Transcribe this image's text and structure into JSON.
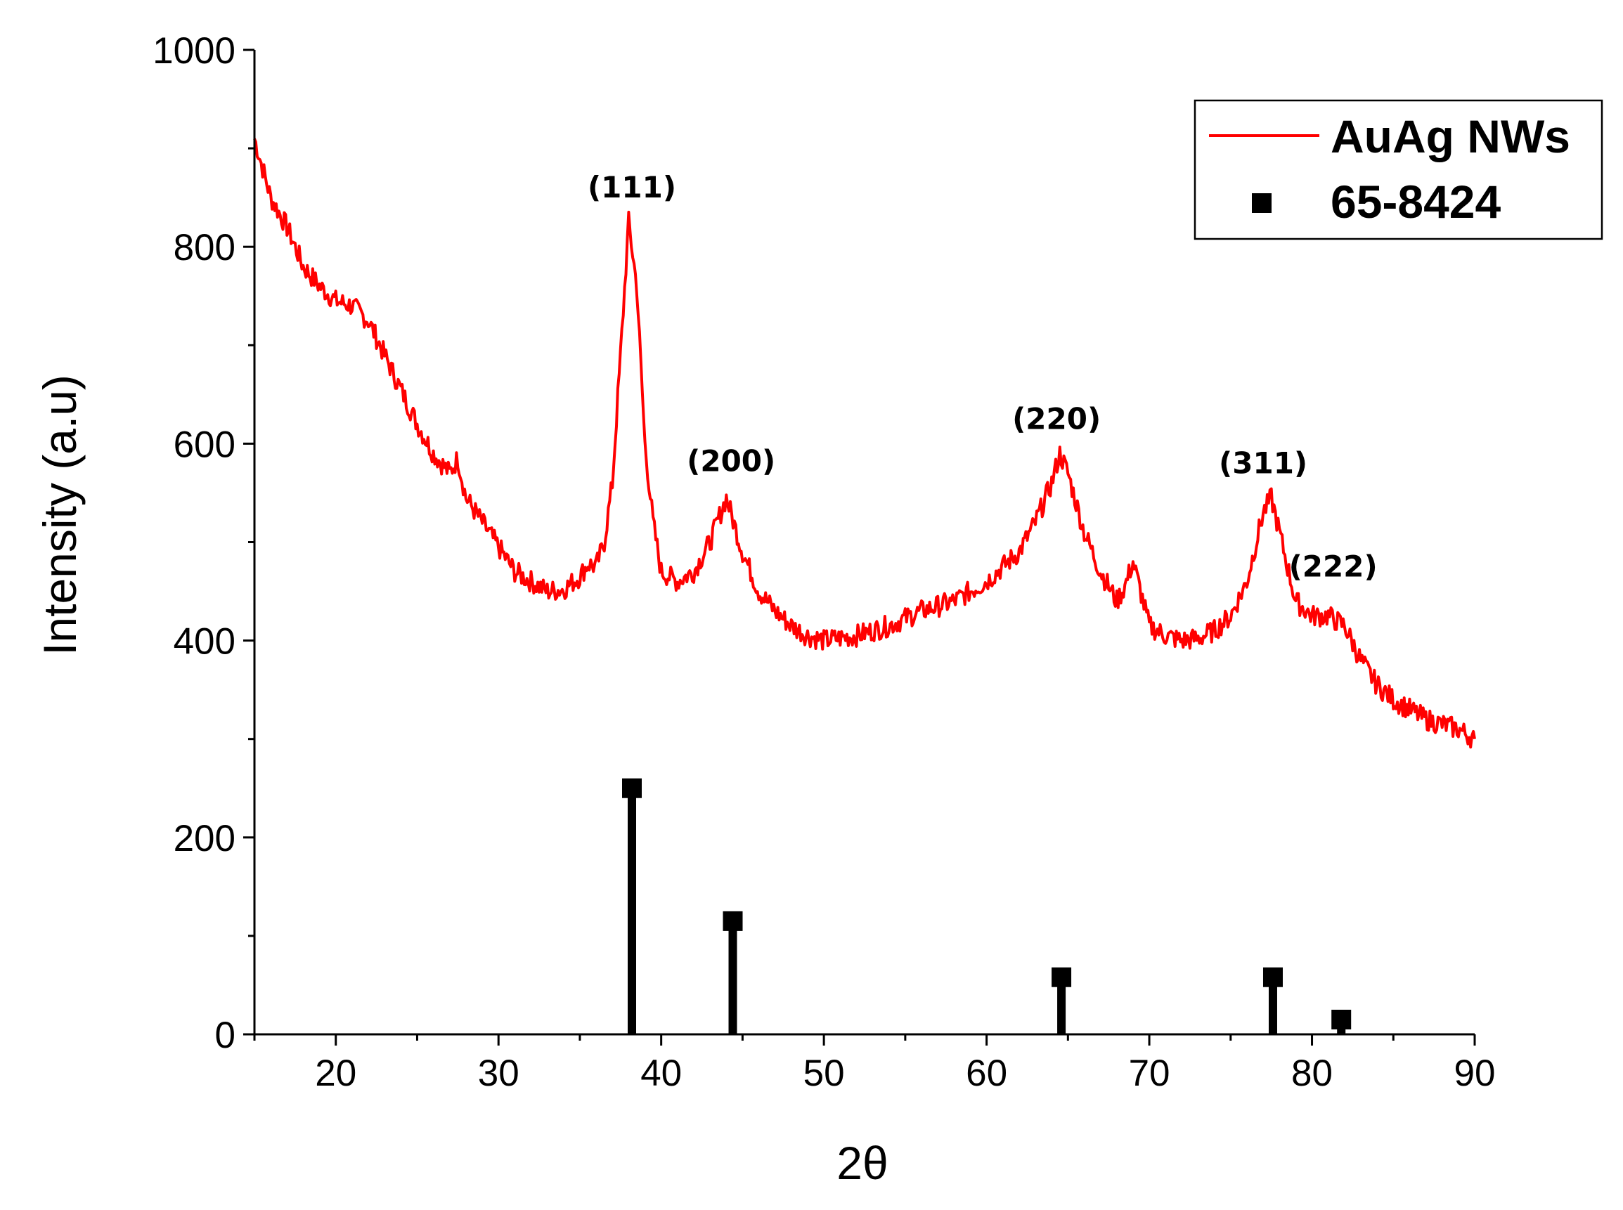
{
  "chart_data": {
    "type": "line",
    "xlabel": "2θ",
    "ylabel": "Intensity (a.u)",
    "xlim": [
      15,
      90
    ],
    "ylim": [
      0,
      1000
    ],
    "x_ticks": [
      "20",
      "30",
      "40",
      "50",
      "60",
      "70",
      "80",
      "90"
    ],
    "y_ticks": [
      "0",
      "200",
      "400",
      "600",
      "800",
      "1000"
    ],
    "grid": false,
    "legend_position": "top-right",
    "colors": {
      "pattern": "#ff0000",
      "reference": "#000000"
    },
    "series": [
      {
        "name": "AuAg NWs",
        "kind": "line",
        "x": [
          15,
          15.5,
          16,
          17,
          18,
          19,
          20,
          21,
          22,
          23,
          24,
          25,
          26,
          27,
          27.5,
          28,
          29,
          30,
          31,
          32,
          33,
          34,
          35,
          35.5,
          36,
          36.5,
          37,
          37.5,
          38,
          38.5,
          39,
          39.5,
          40,
          41,
          42,
          43,
          44,
          45,
          46,
          47,
          48,
          49,
          50,
          52,
          54,
          56,
          58,
          60,
          62,
          63,
          64,
          64.5,
          65,
          66,
          67,
          68,
          68.5,
          69,
          70,
          71,
          72,
          73,
          74,
          75,
          76,
          76.5,
          77,
          77.5,
          78,
          78.5,
          79,
          80,
          81,
          82,
          83,
          84,
          85,
          86,
          87,
          88,
          89,
          90
        ],
        "y": [
          910,
          880,
          850,
          820,
          780,
          760,
          745,
          740,
          725,
          690,
          655,
          620,
          590,
          570,
          585,
          545,
          520,
          495,
          470,
          460,
          450,
          452,
          465,
          478,
          475,
          500,
          560,
          690,
          825,
          760,
          600,
          520,
          470,
          460,
          470,
          500,
          545,
          490,
          450,
          430,
          415,
          405,
          400,
          405,
          415,
          430,
          440,
          460,
          490,
          520,
          560,
          590,
          570,
          510,
          470,
          440,
          455,
          480,
          415,
          405,
          400,
          402,
          410,
          425,
          460,
          495,
          530,
          545,
          510,
          475,
          440,
          425,
          425,
          415,
          380,
          355,
          340,
          330,
          320,
          315,
          310,
          300
        ]
      },
      {
        "name": "65-8424",
        "kind": "stick",
        "x": [
          38.2,
          44.4,
          64.6,
          77.6,
          81.8
        ],
        "y": [
          250,
          115,
          58,
          58,
          15
        ]
      }
    ],
    "annotations": [
      {
        "text": "(111)",
        "x": 38.2,
        "y": 850
      },
      {
        "text": "(200)",
        "x": 44.3,
        "y": 572
      },
      {
        "text": "(220)",
        "x": 64.3,
        "y": 615
      },
      {
        "text": "(311)",
        "x": 77.0,
        "y": 570
      },
      {
        "text": "(222)",
        "x": 81.3,
        "y": 465
      }
    ]
  }
}
